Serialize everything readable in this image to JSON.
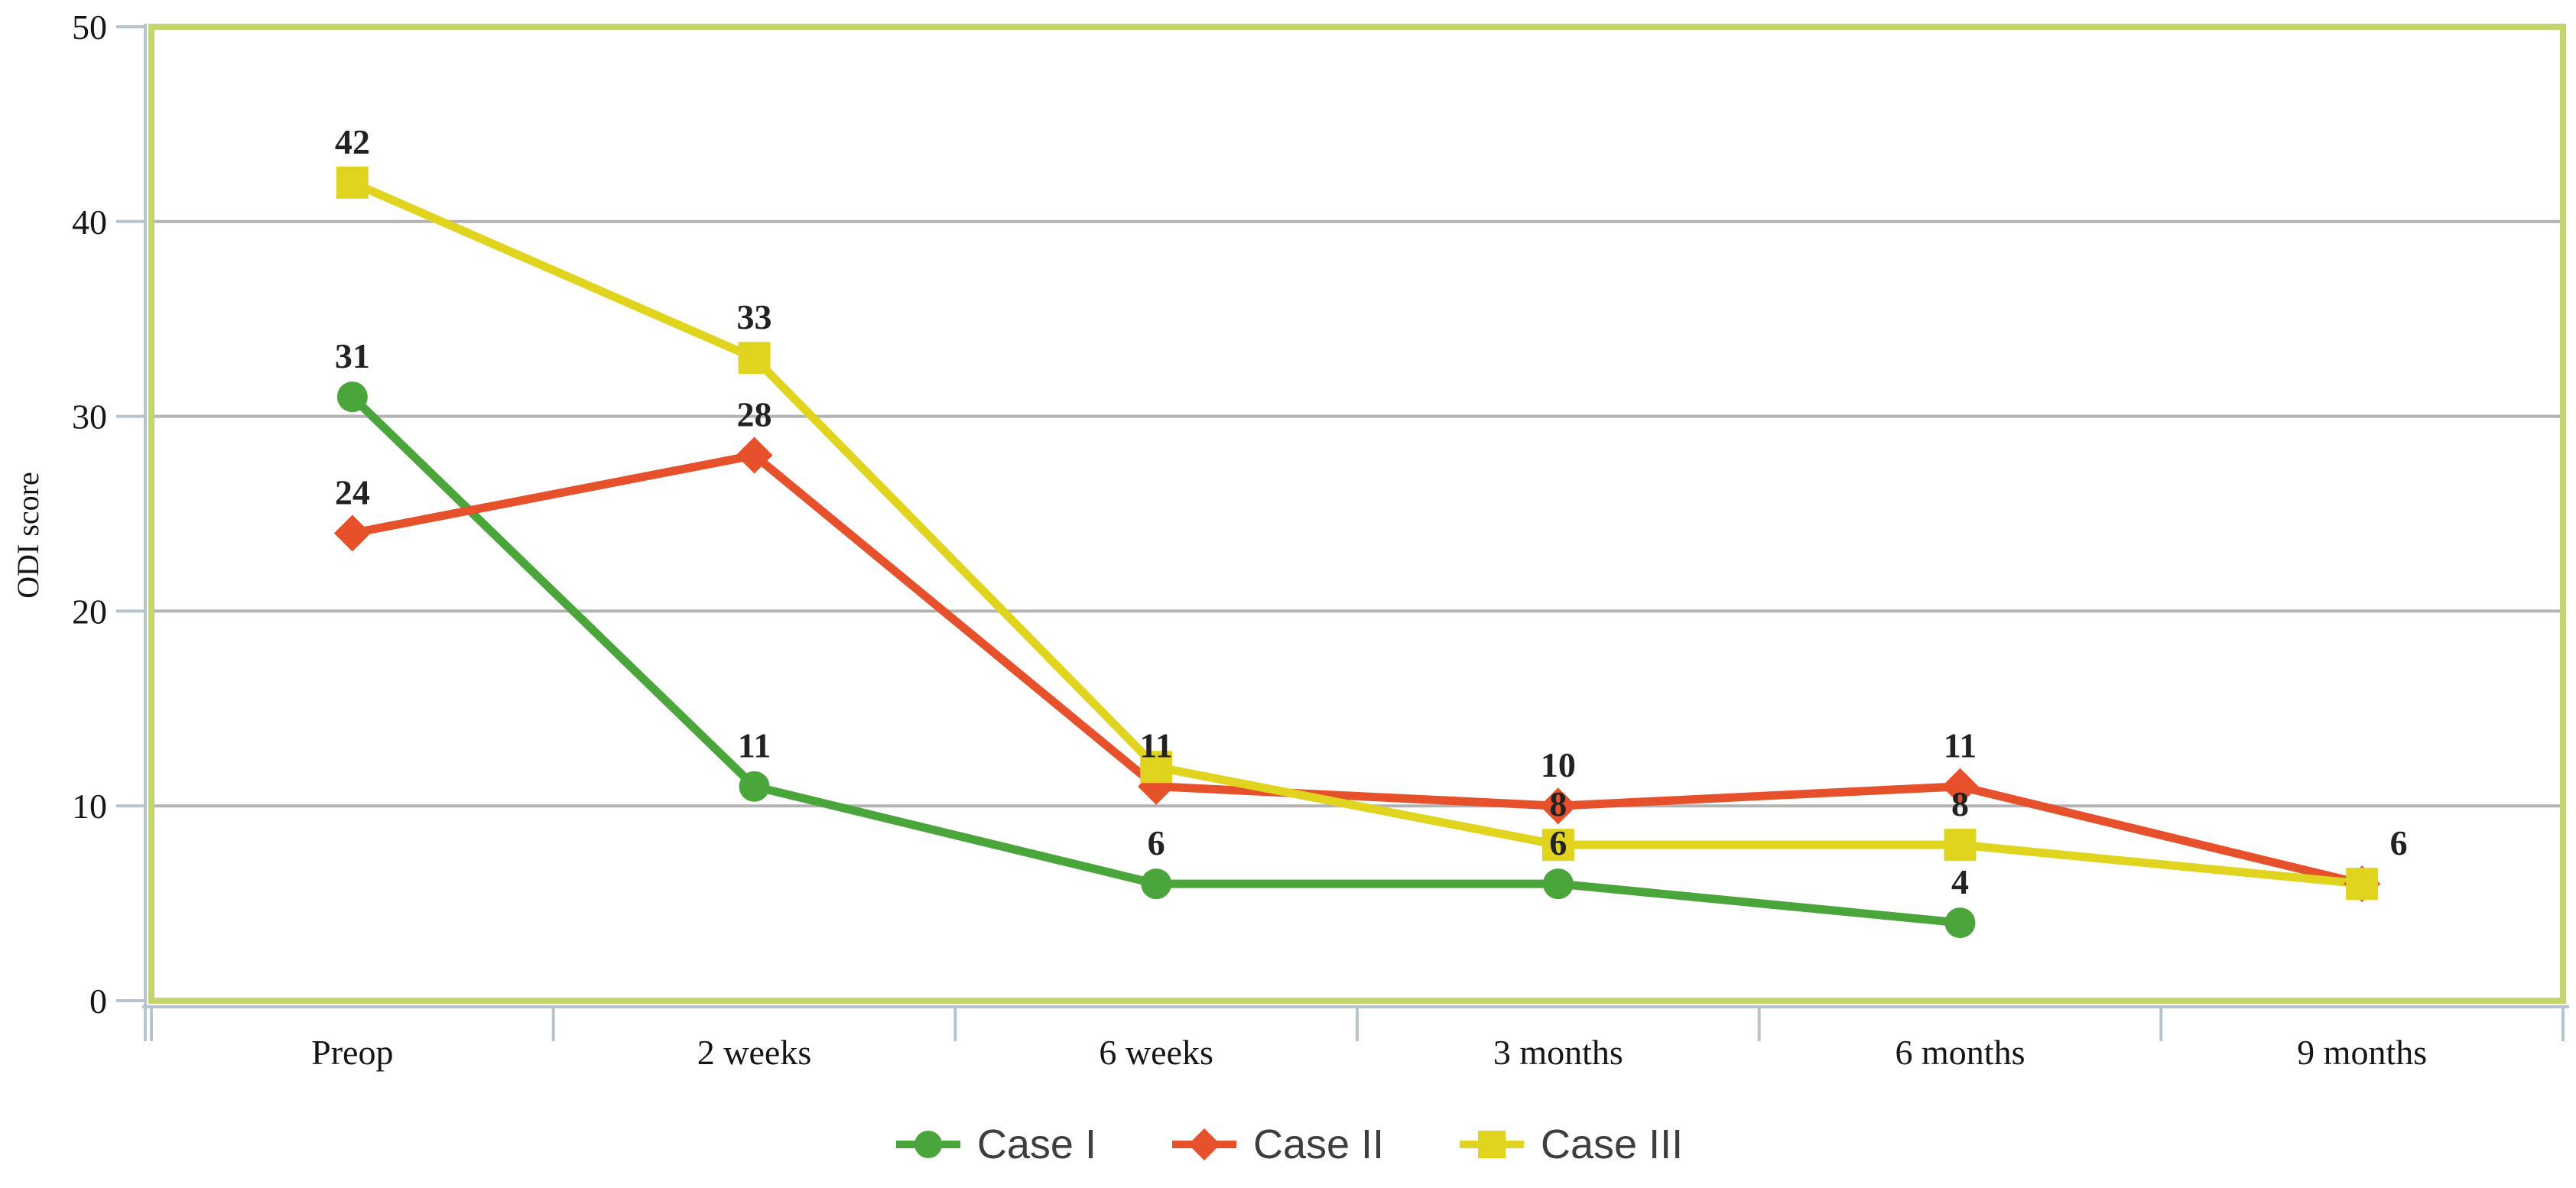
{
  "figure": {
    "background": "#ffffff",
    "type_hint": "line chart of ODI score over follow-up time"
  },
  "chart_data": {
    "type": "line",
    "title": "",
    "xlabel": "",
    "ylabel": "ODI score",
    "ylim": [
      0,
      50
    ],
    "y_ticks": [
      "0",
      "10",
      "20",
      "30",
      "40",
      "50"
    ],
    "grid": "horizontal gridlines at every 10",
    "legend_position": "bottom-center",
    "categories": [
      "Preop",
      "2 weeks",
      "6 weeks",
      "3 months",
      "6 months",
      "9 months"
    ],
    "series": [
      {
        "name": "Case I",
        "marker": "circle",
        "color": "#4aa53a",
        "values": [
          31,
          11,
          6,
          6,
          4,
          null
        ],
        "point_labels": [
          "31",
          "11",
          "6",
          "6",
          "4",
          ""
        ],
        "label_dx": [
          0,
          0,
          0,
          0,
          0,
          0
        ]
      },
      {
        "name": "Case II",
        "marker": "diamond",
        "color": "#e6502a",
        "values": [
          24,
          28,
          11,
          10,
          11,
          6
        ],
        "point_labels": [
          "24",
          "28",
          "11",
          "10",
          "11",
          ""
        ],
        "label_dx": [
          0,
          0,
          0,
          0,
          0,
          0
        ]
      },
      {
        "name": "Case III",
        "marker": "square",
        "color": "#e0d41f",
        "values": [
          42,
          33,
          12,
          8,
          8,
          6
        ],
        "point_labels": [
          "42",
          "33",
          "",
          "8",
          "8",
          "6"
        ],
        "label_dx": [
          0,
          0,
          0,
          0,
          0,
          48
        ]
      }
    ]
  },
  "style": {
    "grid_color": "#b3b3b3",
    "plot_border_color": "#c5d56e",
    "axis_tick_color": "#b6c4cf",
    "data_label_color": "#222222",
    "axis_text_color": "#161616",
    "legend_text_color": "#3e3e3e",
    "background": "#ffffff"
  }
}
